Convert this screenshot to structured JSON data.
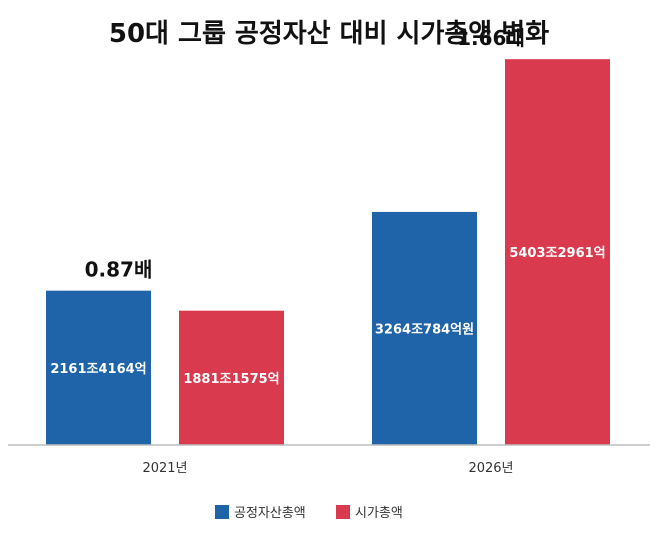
{
  "chart_data": {
    "type": "bar",
    "title": "50대 그룹 공정자산 대비 시가총액 변화",
    "categories": [
      "2021년",
      "2026년"
    ],
    "unit": "조원",
    "series": [
      {
        "name": "공정자산총액",
        "color": "#1f63a8",
        "values": [
          2161.4164,
          3264.0784
        ],
        "labels": [
          "2161조4164억",
          "3264조784억원"
        ]
      },
      {
        "name": "시가총액",
        "color": "#d93a4e",
        "values": [
          1881.1575,
          5403.2961
        ],
        "labels": [
          "1881조1575억",
          "5403조2961억"
        ]
      }
    ],
    "ratios": [
      "0.87배",
      "1.66배"
    ],
    "ylim": [
      0,
      5700
    ],
    "legend_position": "bottom",
    "grid": false
  }
}
